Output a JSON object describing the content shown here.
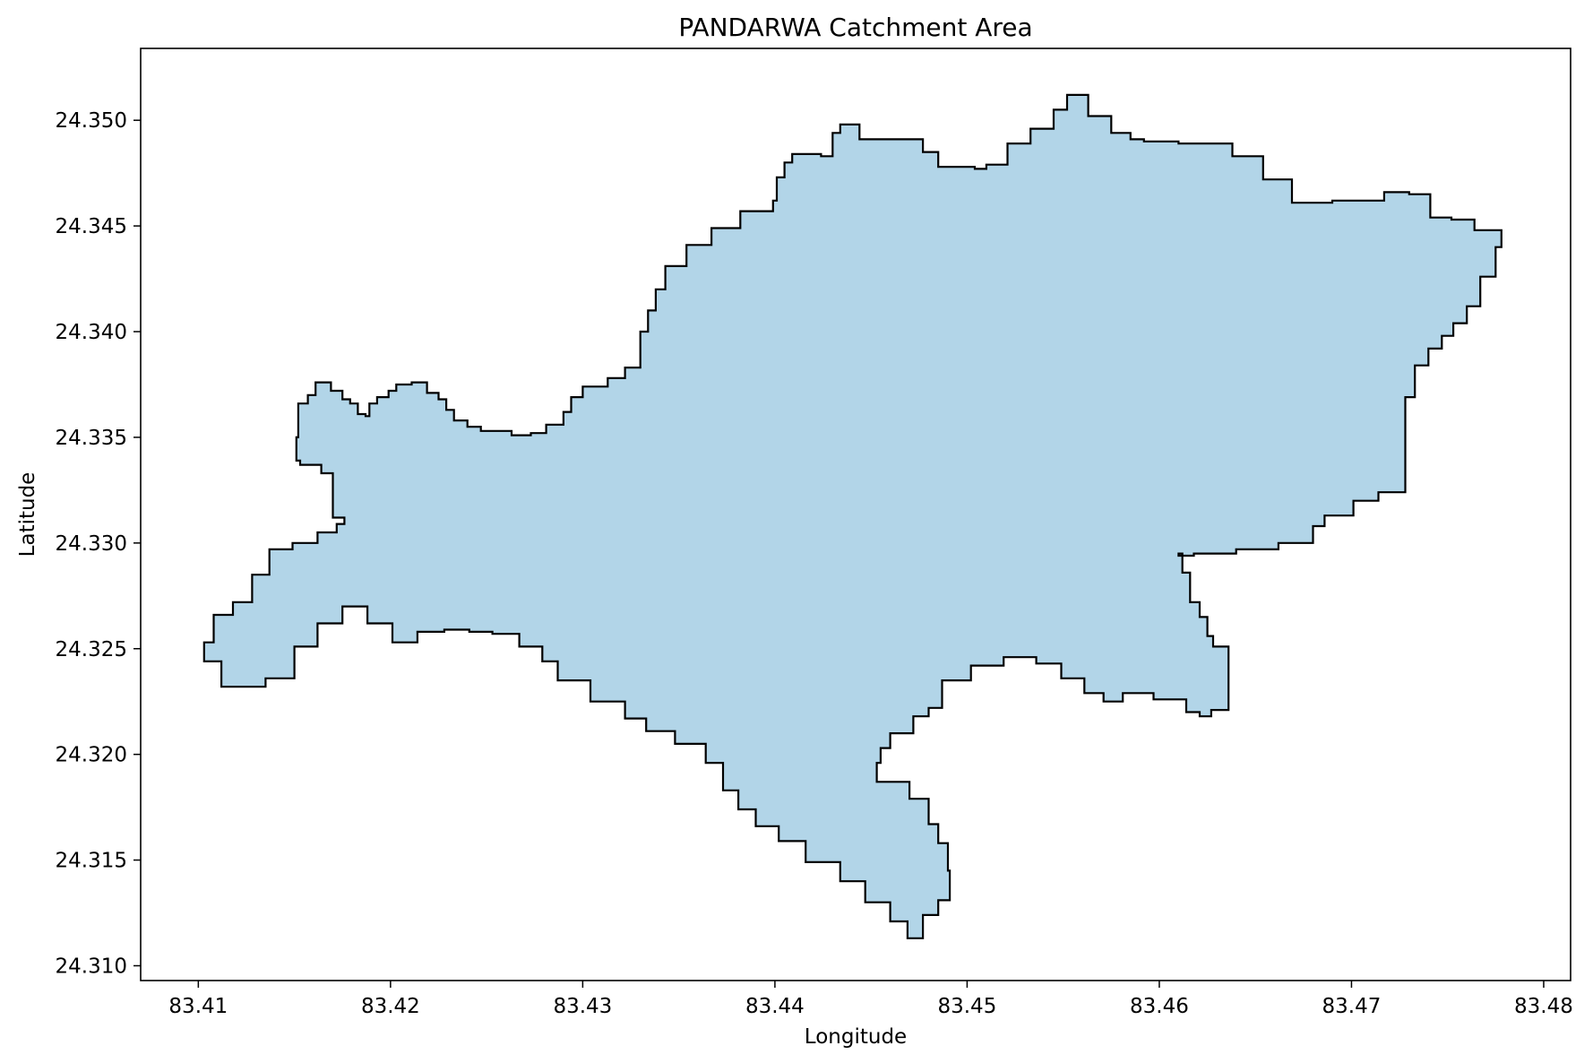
{
  "chart_data": {
    "type": "map",
    "title": "PANDARWA Catchment Area",
    "xlabel": "Longitude",
    "ylabel": "Latitude",
    "xlim": [
      83.407,
      83.4814
    ],
    "ylim": [
      24.3093,
      24.3534
    ],
    "xticks": [
      83.41,
      83.42,
      83.43,
      83.44,
      83.45,
      83.46,
      83.47,
      83.48
    ],
    "xtick_labels": [
      "83.41",
      "83.42",
      "83.43",
      "83.44",
      "83.45",
      "83.46",
      "83.47",
      "83.48"
    ],
    "yticks": [
      24.31,
      24.315,
      24.32,
      24.325,
      24.33,
      24.335,
      24.34,
      24.345,
      24.35
    ],
    "ytick_labels": [
      "24.310",
      "24.315",
      "24.320",
      "24.325",
      "24.330",
      "24.335",
      "24.340",
      "24.345",
      "24.350"
    ],
    "grid": false,
    "polygon_fill": "#b2d5e8",
    "polygon_stroke": "#000000",
    "polygon": [
      [
        83.4161,
        24.3376
      ],
      [
        83.4167,
        24.3376
      ],
      [
        83.4169,
        24.3372
      ],
      [
        83.4173,
        24.3372
      ],
      [
        83.4175,
        24.3368
      ],
      [
        83.4179,
        24.3366
      ],
      [
        83.4183,
        24.3361
      ],
      [
        83.4187,
        24.336
      ],
      [
        83.4189,
        24.3366
      ],
      [
        83.4193,
        24.3369
      ],
      [
        83.4199,
        24.3372
      ],
      [
        83.4203,
        24.3375
      ],
      [
        83.4211,
        24.3376
      ],
      [
        83.4219,
        24.3371
      ],
      [
        83.4225,
        24.3368
      ],
      [
        83.4229,
        24.3363
      ],
      [
        83.4233,
        24.3358
      ],
      [
        83.424,
        24.3355
      ],
      [
        83.4247,
        24.3353
      ],
      [
        83.4263,
        24.3351
      ],
      [
        83.4273,
        24.3352
      ],
      [
        83.4281,
        24.3356
      ],
      [
        83.429,
        24.3362
      ],
      [
        83.4294,
        24.3369
      ],
      [
        83.43,
        24.3374
      ],
      [
        83.4313,
        24.3378
      ],
      [
        83.4322,
        24.3383
      ],
      [
        83.433,
        24.34
      ],
      [
        83.4334,
        24.341
      ],
      [
        83.4338,
        24.342
      ],
      [
        83.4343,
        24.3431
      ],
      [
        83.4354,
        24.3441
      ],
      [
        83.4367,
        24.3449
      ],
      [
        83.4382,
        24.3457
      ],
      [
        83.4399,
        24.3462
      ],
      [
        83.4401,
        24.3473
      ],
      [
        83.4405,
        24.348
      ],
      [
        83.4409,
        24.3484
      ],
      [
        83.4424,
        24.3483
      ],
      [
        83.443,
        24.3494
      ],
      [
        83.4434,
        24.3498
      ],
      [
        83.4444,
        24.3491
      ],
      [
        83.4477,
        24.3485
      ],
      [
        83.4485,
        24.3478
      ],
      [
        83.4497,
        24.3478
      ],
      [
        83.4504,
        24.3477
      ],
      [
        83.451,
        24.3479
      ],
      [
        83.4521,
        24.3489
      ],
      [
        83.4533,
        24.3496
      ],
      [
        83.4545,
        24.3505
      ],
      [
        83.4552,
        24.3512
      ],
      [
        83.4563,
        24.3502
      ],
      [
        83.4575,
        24.3494
      ],
      [
        83.4585,
        24.3491
      ],
      [
        83.4592,
        24.349
      ],
      [
        83.461,
        24.3489
      ],
      [
        83.4638,
        24.3483
      ],
      [
        83.4654,
        24.3472
      ],
      [
        83.4669,
        24.3461
      ],
      [
        83.469,
        24.3462
      ],
      [
        83.47,
        24.3462
      ],
      [
        83.4717,
        24.3466
      ],
      [
        83.473,
        24.3465
      ],
      [
        83.4741,
        24.3454
      ],
      [
        83.4752,
        24.3453
      ],
      [
        83.4764,
        24.3448
      ],
      [
        83.4778,
        24.344
      ],
      [
        83.4775,
        24.3426
      ],
      [
        83.4767,
        24.3412
      ],
      [
        83.476,
        24.3404
      ],
      [
        83.4753,
        24.3398
      ],
      [
        83.4747,
        24.3392
      ],
      [
        83.474,
        24.3384
      ],
      [
        83.4733,
        24.3369
      ],
      [
        83.4728,
        24.3354
      ],
      [
        83.4728,
        24.3324
      ],
      [
        83.4714,
        24.332
      ],
      [
        83.4701,
        24.3313
      ],
      [
        83.4686,
        24.3308
      ],
      [
        83.468,
        24.33
      ],
      [
        83.4662,
        24.3297
      ],
      [
        83.464,
        24.3295
      ],
      [
        83.4618,
        24.3294
      ],
      [
        83.461,
        24.3295
      ],
      [
        83.4612,
        24.3286
      ],
      [
        83.4616,
        24.3272
      ],
      [
        83.4621,
        24.3265
      ],
      [
        83.4625,
        24.3256
      ],
      [
        83.4628,
        24.3251
      ],
      [
        83.4636,
        24.325
      ],
      [
        83.4636,
        24.3221
      ],
      [
        83.4627,
        24.3218
      ],
      [
        83.4621,
        24.322
      ],
      [
        83.4614,
        24.3226
      ],
      [
        83.4597,
        24.3229
      ],
      [
        83.4581,
        24.3225
      ],
      [
        83.4571,
        24.3229
      ],
      [
        83.4561,
        24.3236
      ],
      [
        83.4549,
        24.3243
      ],
      [
        83.4536,
        24.3246
      ],
      [
        83.4519,
        24.3242
      ],
      [
        83.4502,
        24.3235
      ],
      [
        83.4487,
        24.3222
      ],
      [
        83.448,
        24.3218
      ],
      [
        83.4472,
        24.321
      ],
      [
        83.446,
        24.3203
      ],
      [
        83.4455,
        24.3196
      ],
      [
        83.4453,
        24.3187
      ],
      [
        83.447,
        24.3179
      ],
      [
        83.448,
        24.3167
      ],
      [
        83.4485,
        24.3158
      ],
      [
        83.449,
        24.3145
      ],
      [
        83.4491,
        24.3131
      ],
      [
        83.4485,
        24.3124
      ],
      [
        83.4477,
        24.3113
      ],
      [
        83.4469,
        24.3121
      ],
      [
        83.446,
        24.313
      ],
      [
        83.4447,
        24.314
      ],
      [
        83.4434,
        24.3149
      ],
      [
        83.4416,
        24.3159
      ],
      [
        83.4402,
        24.3166
      ],
      [
        83.439,
        24.3174
      ],
      [
        83.4381,
        24.3183
      ],
      [
        83.4373,
        24.3196
      ],
      [
        83.4364,
        24.3205
      ],
      [
        83.4348,
        24.3211
      ],
      [
        83.4333,
        24.3217
      ],
      [
        83.4322,
        24.3225
      ],
      [
        83.4304,
        24.3235
      ],
      [
        83.4287,
        24.3244
      ],
      [
        83.4279,
        24.3251
      ],
      [
        83.4267,
        24.3257
      ],
      [
        83.4253,
        24.3258
      ],
      [
        83.4241,
        24.3259
      ],
      [
        83.4228,
        24.3258
      ],
      [
        83.4214,
        24.3253
      ],
      [
        83.4201,
        24.3262
      ],
      [
        83.4188,
        24.327
      ],
      [
        83.4175,
        24.3262
      ],
      [
        83.4162,
        24.3251
      ],
      [
        83.415,
        24.3236
      ],
      [
        83.4135,
        24.3232
      ],
      [
        83.4124,
        24.3232
      ],
      [
        83.4112,
        24.3244
      ],
      [
        83.4103,
        24.3253
      ],
      [
        83.4108,
        24.3266
      ],
      [
        83.4118,
        24.3272
      ],
      [
        83.4128,
        24.3285
      ],
      [
        83.4137,
        24.3297
      ],
      [
        83.4149,
        24.33
      ],
      [
        83.4162,
        24.3305
      ],
      [
        83.4172,
        24.3309
      ],
      [
        83.4176,
        24.3312
      ],
      [
        83.417,
        24.3322
      ],
      [
        83.417,
        24.3333
      ],
      [
        83.4164,
        24.3337
      ],
      [
        83.4153,
        24.3339
      ],
      [
        83.4151,
        24.335
      ],
      [
        83.4152,
        24.3366
      ],
      [
        83.4157,
        24.337
      ]
    ]
  }
}
